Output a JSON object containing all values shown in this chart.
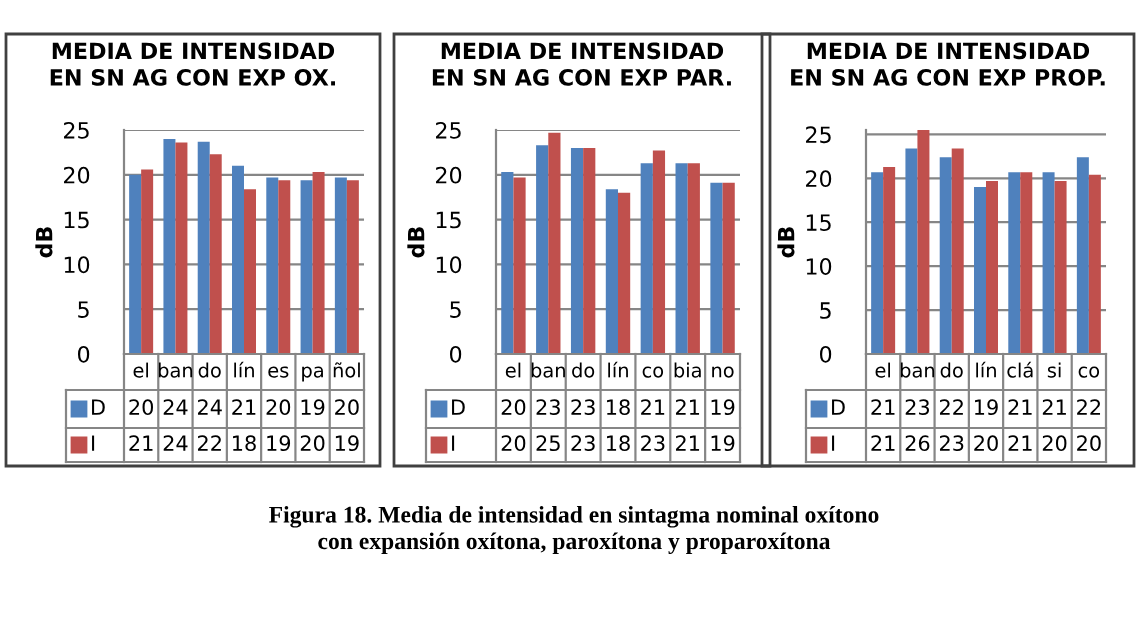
{
  "chart_data": [
    {
      "type": "bar",
      "title": "MEDIA DE INTENSIDAD\nEN SN AG CON EXP OX.",
      "ylabel": "dB",
      "categories": [
        "el",
        "ban",
        "do",
        "lín",
        "es",
        "pa",
        "ñol"
      ],
      "series": [
        {
          "name": "D",
          "color": "#4f81bd",
          "values": [
            20.0,
            24.0,
            23.7,
            21.0,
            19.7,
            19.4,
            19.7
          ],
          "value_labels": [
            "20",
            "24",
            "24",
            "21",
            "20",
            "19",
            "20"
          ]
        },
        {
          "name": "I",
          "color": "#c0504d",
          "values": [
            20.6,
            23.6,
            22.3,
            18.4,
            19.4,
            20.3,
            19.4
          ],
          "value_labels": [
            "21",
            "24",
            "22",
            "18",
            "19",
            "20",
            "19"
          ]
        }
      ],
      "ylim": [
        0,
        25
      ],
      "yticks": [
        0,
        5,
        10,
        15,
        20,
        25
      ],
      "grid": "y",
      "legend": "bottom"
    },
    {
      "type": "bar",
      "title": "MEDIA DE INTENSIDAD\nEN SN AG CON EXP PAR.",
      "ylabel": "dB",
      "categories": [
        "el",
        "ban",
        "do",
        "lín",
        "co",
        "bia",
        "no"
      ],
      "series": [
        {
          "name": "D",
          "color": "#4f81bd",
          "values": [
            20.3,
            23.3,
            23.0,
            18.4,
            21.3,
            21.3,
            19.1
          ],
          "value_labels": [
            "20",
            "23",
            "23",
            "18",
            "21",
            "21",
            "19"
          ]
        },
        {
          "name": "I",
          "color": "#c0504d",
          "values": [
            19.7,
            24.7,
            23.0,
            18.0,
            22.7,
            21.3,
            19.1
          ],
          "value_labels": [
            "20",
            "25",
            "23",
            "18",
            "23",
            "21",
            "19"
          ]
        }
      ],
      "ylim": [
        0,
        25
      ],
      "yticks": [
        0,
        5,
        10,
        15,
        20,
        25
      ],
      "grid": "y",
      "legend": "bottom",
      "annotations": [
        "Figura 18. Media de intensidad en sintagma nominal oxítono\ncon expansión oxítona, paroxítona y proparoxítona"
      ]
    },
    {
      "type": "bar",
      "title": "MEDIA DE INTENSIDAD\nEN SN AG CON EXP PROP.",
      "ylabel": "dB",
      "categories": [
        "el",
        "ban",
        "do",
        "lín",
        "clá",
        "si",
        "co"
      ],
      "series": [
        {
          "name": "D",
          "color": "#4f81bd",
          "values": [
            20.7,
            23.4,
            22.4,
            19.0,
            20.7,
            20.7,
            22.4
          ],
          "value_labels": [
            "21",
            "23",
            "22",
            "19",
            "21",
            "21",
            "22"
          ]
        },
        {
          "name": "I",
          "color": "#c0504d",
          "values": [
            21.3,
            25.5,
            23.4,
            19.7,
            20.7,
            19.7,
            20.4
          ],
          "value_labels": [
            "21",
            "26",
            "23",
            "20",
            "21",
            "20",
            "20"
          ]
        }
      ],
      "ylim": [
        0,
        25.5
      ],
      "yticks": [
        0,
        5,
        10,
        15,
        20,
        25
      ],
      "grid": "y",
      "legend": "bottom"
    }
  ]
}
